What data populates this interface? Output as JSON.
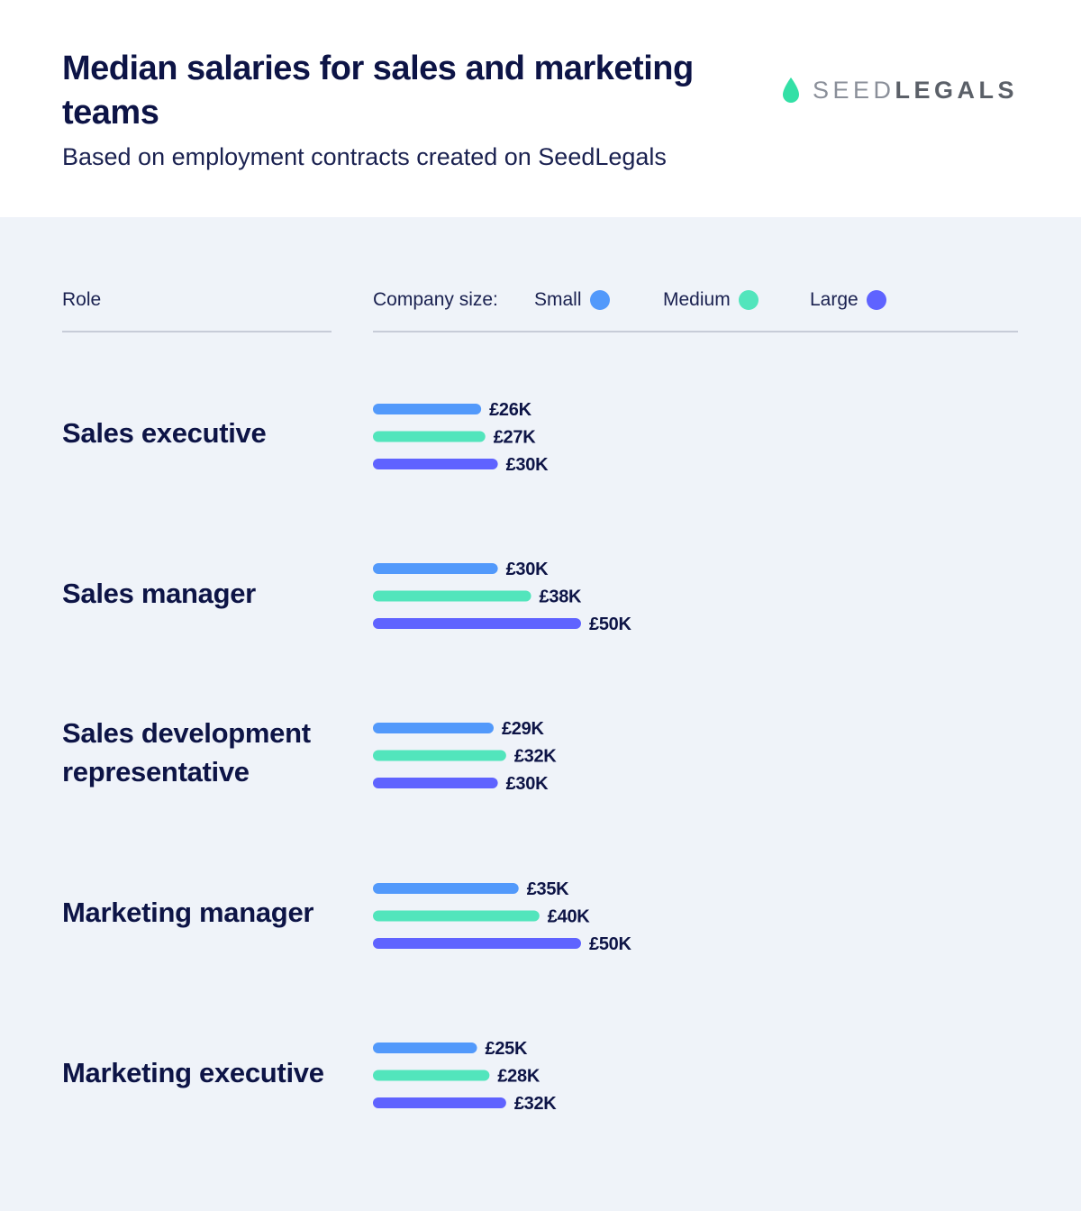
{
  "header": {
    "title": "Median salaries for sales and marketing teams",
    "subtitle": "Based on employment contracts created on SeedLegals"
  },
  "logo": {
    "light_text": "SEED",
    "bold_text": "LEGALS",
    "icon": "droplet-icon",
    "color": "#33e0a6"
  },
  "columns": {
    "role": "Role",
    "company_size": "Company size:"
  },
  "legend": [
    {
      "label": "Small",
      "color": "#5299fb"
    },
    {
      "label": "Medium",
      "color": "#52e5bc"
    },
    {
      "label": "Large",
      "color": "#5f63ff"
    }
  ],
  "chart_data": {
    "type": "bar",
    "orientation": "horizontal",
    "title": "Median salaries for sales and marketing teams",
    "subtitle": "Based on employment contracts created on SeedLegals",
    "categories": [
      "Sales executive",
      "Sales manager",
      "Sales development representative",
      "Marketing manager",
      "Marketing executive"
    ],
    "series": [
      {
        "name": "Small",
        "color": "#5299fb",
        "values": [
          26,
          30,
          29,
          35,
          25
        ],
        "labels": [
          "£26K",
          "£30K",
          "£29K",
          "£35K",
          "£25K"
        ]
      },
      {
        "name": "Medium",
        "color": "#52e5bc",
        "values": [
          27,
          38,
          32,
          40,
          28
        ],
        "labels": [
          "£27K",
          "£38K",
          "£32K",
          "£40K",
          "£28K"
        ]
      },
      {
        "name": "Large",
        "color": "#5f63ff",
        "values": [
          30,
          50,
          30,
          50,
          32
        ],
        "labels": [
          "£30K",
          "£50K",
          "£30K",
          "£50K",
          "£32K"
        ]
      }
    ],
    "value_unit": "£K",
    "grid": false,
    "legend_position": "top"
  }
}
